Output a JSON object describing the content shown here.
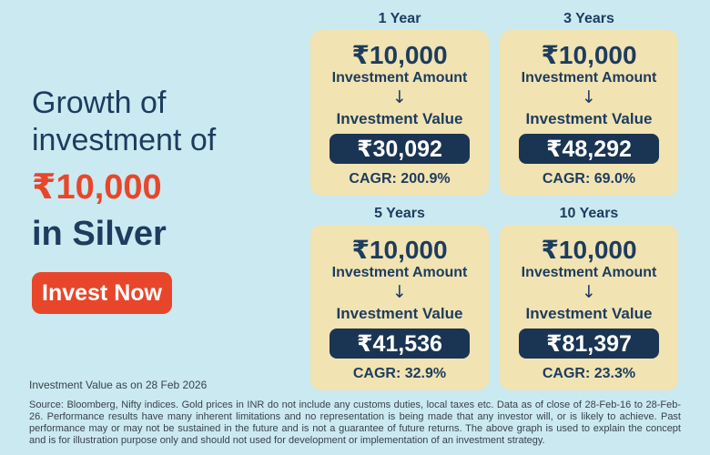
{
  "theme": {
    "background_color": "#cbe9f0",
    "card_color": "#f1e3b2",
    "navy_color": "#1d3c5e",
    "pill_color": "#1a3553",
    "accent_red": "#e8462b"
  },
  "hero": {
    "title_line1": "Growth of",
    "title_line2": "investment of",
    "amount": "₹10,000",
    "asset": "in Silver",
    "cta_label": "Invest Now"
  },
  "icons": {
    "down_arrow": "↓"
  },
  "cards": [
    {
      "period": "1 Year",
      "investment_amount": "₹10,000",
      "amount_label": "Investment Amount",
      "value_label": "Investment Value",
      "investment_value": "₹30,092",
      "cagr": "CAGR: 200.9%"
    },
    {
      "period": "3 Years",
      "investment_amount": "₹10,000",
      "amount_label": "Investment Amount",
      "value_label": "Investment Value",
      "investment_value": "₹48,292",
      "cagr": "CAGR: 69.0%"
    },
    {
      "period": "5 Years",
      "investment_amount": "₹10,000",
      "amount_label": "Investment Amount",
      "value_label": "Investment Value",
      "investment_value": "₹41,536",
      "cagr": "CAGR: 32.9%"
    },
    {
      "period": "10 Years",
      "investment_amount": "₹10,000",
      "amount_label": "Investment Amount",
      "value_label": "Investment Value",
      "investment_value": "₹81,397",
      "cagr": "CAGR: 23.3%"
    }
  ],
  "footer": {
    "as_on": "Investment Value as on 28 Feb 2026",
    "disclaimer": "Source: Bloomberg, Nifty indices. Gold prices in INR do not include any customs duties, local taxes etc. Data as of close of 28-Feb-16 to 28-Feb-26. Performance results have many inherent limitations and no representation is being made that any investor will, or is likely to achieve. Past performance may or may not be sustained in the future and is not a guarantee of future returns. The above graph is used to explain the concept and is for illustration purpose only and should not used for development or implementation of an investment strategy."
  }
}
